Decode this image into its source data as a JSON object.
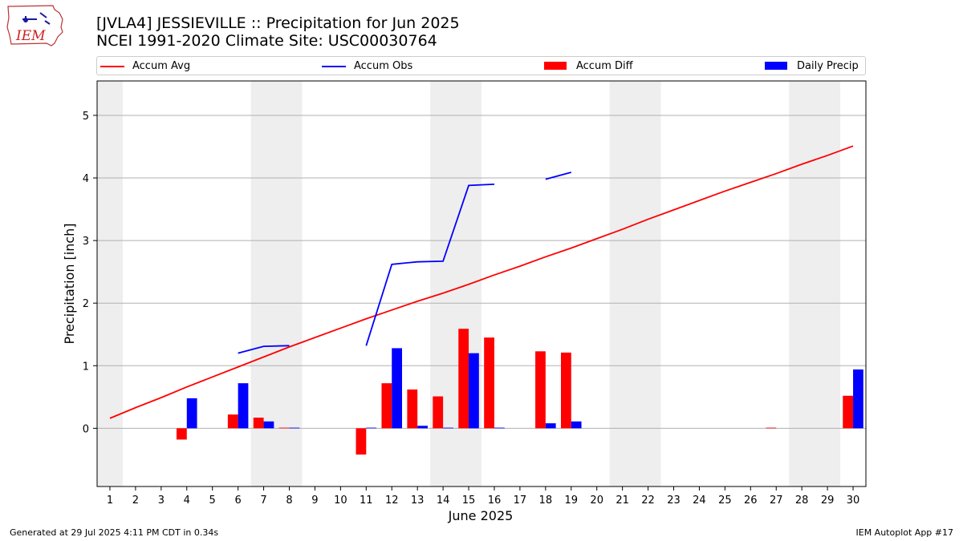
{
  "title_line1": "[JVLA4] JESSIEVILLE :: Precipitation for Jun 2025",
  "title_line2": "NCEI 1991-2020 Climate Site: USC00030764",
  "footer_left": "Generated at 29 Jul 2025 4:11 PM CDT in 0.34s",
  "footer_right": "IEM Autoplot App #17",
  "logo_text": "IEM",
  "legend": [
    {
      "label": "Accum Avg",
      "color": "#ff0000",
      "kind": "line"
    },
    {
      "label": "Accum Obs",
      "color": "#0000ff",
      "kind": "line"
    },
    {
      "label": "Accum Diff",
      "color": "#ff0000",
      "kind": "bar"
    },
    {
      "label": "Daily Precip",
      "color": "#0000ff",
      "kind": "bar"
    }
  ],
  "chart_data": {
    "type": "bar",
    "xlabel": "June 2025",
    "ylabel": "Precipitation [inch]",
    "x": [
      1,
      2,
      3,
      4,
      5,
      6,
      7,
      8,
      9,
      10,
      11,
      12,
      13,
      14,
      15,
      16,
      17,
      18,
      19,
      20,
      21,
      22,
      23,
      24,
      25,
      26,
      27,
      28,
      29,
      30
    ],
    "xlim": [
      0.5,
      30.5
    ],
    "ylim": [
      -0.93,
      5.55
    ],
    "yticks": [
      0,
      1,
      2,
      3,
      4,
      5
    ],
    "grid": "horizontal",
    "weekend_shading": [
      [
        0.5,
        1.5
      ],
      [
        6.5,
        8.5
      ],
      [
        13.5,
        15.5
      ],
      [
        20.5,
        22.5
      ],
      [
        27.5,
        29.5
      ]
    ],
    "series": [
      {
        "name": "Accum Avg",
        "kind": "line",
        "color": "#ff0000",
        "values": [
          0.16,
          0.33,
          0.49,
          0.66,
          0.82,
          0.98,
          1.14,
          1.3,
          1.45,
          1.6,
          1.75,
          1.89,
          2.03,
          2.16,
          2.3,
          2.45,
          2.59,
          2.74,
          2.88,
          3.03,
          3.18,
          3.34,
          3.49,
          3.64,
          3.79,
          3.93,
          4.07,
          4.22,
          4.36,
          4.51
        ]
      },
      {
        "name": "Accum Obs",
        "kind": "line",
        "color": "#0000ff",
        "values": [
          null,
          null,
          null,
          null,
          null,
          1.2,
          1.31,
          1.32,
          null,
          null,
          1.32,
          2.62,
          2.66,
          2.67,
          3.88,
          3.9,
          null,
          3.98,
          4.09,
          null,
          null,
          null,
          null,
          null,
          null,
          null,
          null,
          null,
          null,
          null
        ]
      },
      {
        "name": "Accum Diff",
        "kind": "bar",
        "color": "#ff0000",
        "values": [
          null,
          null,
          null,
          -0.18,
          null,
          0.22,
          0.17,
          0.01,
          null,
          null,
          -0.42,
          0.72,
          0.62,
          0.51,
          1.59,
          1.45,
          null,
          1.23,
          1.21,
          null,
          null,
          null,
          null,
          null,
          null,
          null,
          0.01,
          null,
          null,
          0.52
        ]
      },
      {
        "name": "Daily Precip",
        "kind": "bar",
        "color": "#0000ff",
        "values": [
          null,
          null,
          null,
          0.48,
          null,
          0.72,
          0.11,
          0.01,
          null,
          null,
          0.01,
          1.28,
          0.04,
          0.01,
          1.2,
          0.01,
          null,
          0.08,
          0.11,
          null,
          null,
          null,
          null,
          null,
          null,
          null,
          null,
          null,
          null,
          0.94
        ]
      }
    ]
  }
}
